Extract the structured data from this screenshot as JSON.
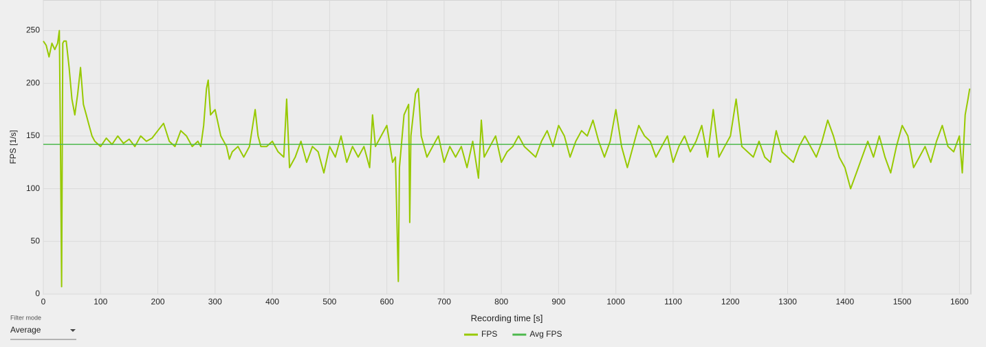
{
  "chart_data": {
    "type": "line",
    "x_label": "Recording time [s]",
    "y_label": "FPS [1/s]",
    "x": [
      0,
      5,
      10,
      15,
      20,
      25,
      28,
      30,
      32,
      34,
      36,
      40,
      45,
      50,
      55,
      60,
      65,
      70,
      75,
      80,
      85,
      90,
      100,
      110,
      120,
      130,
      140,
      150,
      160,
      170,
      180,
      190,
      200,
      210,
      220,
      230,
      240,
      250,
      260,
      270,
      275,
      280,
      285,
      288,
      292,
      300,
      310,
      320,
      325,
      330,
      340,
      350,
      360,
      370,
      375,
      380,
      390,
      400,
      410,
      420,
      425,
      430,
      440,
      450,
      460,
      470,
      480,
      490,
      500,
      510,
      520,
      530,
      540,
      550,
      560,
      570,
      575,
      580,
      590,
      600,
      610,
      615,
      618,
      620,
      622,
      630,
      638,
      640,
      642,
      650,
      655,
      660,
      670,
      680,
      690,
      700,
      710,
      720,
      730,
      740,
      750,
      760,
      765,
      770,
      780,
      790,
      800,
      810,
      820,
      830,
      840,
      850,
      860,
      870,
      880,
      890,
      900,
      910,
      920,
      930,
      940,
      950,
      960,
      970,
      980,
      990,
      1000,
      1010,
      1020,
      1030,
      1040,
      1050,
      1060,
      1070,
      1080,
      1090,
      1100,
      1110,
      1120,
      1130,
      1140,
      1150,
      1160,
      1170,
      1180,
      1190,
      1200,
      1210,
      1220,
      1230,
      1240,
      1250,
      1260,
      1270,
      1280,
      1290,
      1300,
      1310,
      1320,
      1330,
      1340,
      1350,
      1360,
      1370,
      1380,
      1390,
      1400,
      1410,
      1420,
      1430,
      1440,
      1450,
      1460,
      1470,
      1480,
      1490,
      1500,
      1510,
      1520,
      1530,
      1540,
      1550,
      1560,
      1570,
      1580,
      1590,
      1600,
      1605,
      1610,
      1615,
      1618
    ],
    "series": [
      {
        "name": "FPS",
        "color": "#97c900",
        "values": [
          240,
          236,
          225,
          238,
          232,
          238,
          250,
          140,
          7,
          238,
          240,
          240,
          215,
          185,
          170,
          190,
          215,
          180,
          170,
          160,
          150,
          145,
          140,
          148,
          142,
          150,
          143,
          147,
          140,
          150,
          145,
          148,
          155,
          162,
          145,
          140,
          155,
          150,
          140,
          145,
          140,
          160,
          195,
          203,
          170,
          175,
          150,
          140,
          128,
          135,
          140,
          130,
          140,
          175,
          150,
          140,
          140,
          145,
          135,
          130,
          185,
          120,
          130,
          145,
          125,
          140,
          135,
          115,
          140,
          130,
          150,
          125,
          140,
          130,
          140,
          120,
          170,
          140,
          150,
          160,
          125,
          130,
          60,
          12,
          120,
          170,
          180,
          68,
          150,
          190,
          195,
          150,
          130,
          140,
          150,
          125,
          140,
          130,
          140,
          120,
          145,
          110,
          165,
          130,
          140,
          150,
          125,
          135,
          140,
          150,
          140,
          135,
          130,
          145,
          155,
          140,
          160,
          150,
          130,
          145,
          155,
          150,
          165,
          145,
          130,
          145,
          175,
          140,
          120,
          140,
          160,
          150,
          145,
          130,
          140,
          150,
          125,
          140,
          150,
          135,
          145,
          160,
          130,
          175,
          130,
          140,
          150,
          185,
          140,
          135,
          130,
          145,
          130,
          125,
          155,
          135,
          130,
          125,
          140,
          150,
          140,
          130,
          145,
          165,
          150,
          130,
          120,
          100,
          115,
          130,
          145,
          130,
          150,
          130,
          115,
          140,
          160,
          150,
          120,
          130,
          140,
          125,
          145,
          160,
          140,
          135,
          150,
          115,
          170,
          185,
          195
        ]
      },
      {
        "name": "Avg FPS",
        "color": "#4cb84c",
        "value": 142
      }
    ],
    "xlim": [
      0,
      1620
    ],
    "ylim": [
      0,
      279
    ],
    "xticks": [
      0,
      100,
      200,
      300,
      400,
      500,
      600,
      700,
      800,
      900,
      1000,
      1100,
      1200,
      1300,
      1400,
      1500,
      1600
    ],
    "yticks": [
      0,
      50,
      100,
      150,
      200,
      250
    ],
    "grid": true
  },
  "filter": {
    "label": "Filter mode",
    "value": "Average"
  }
}
